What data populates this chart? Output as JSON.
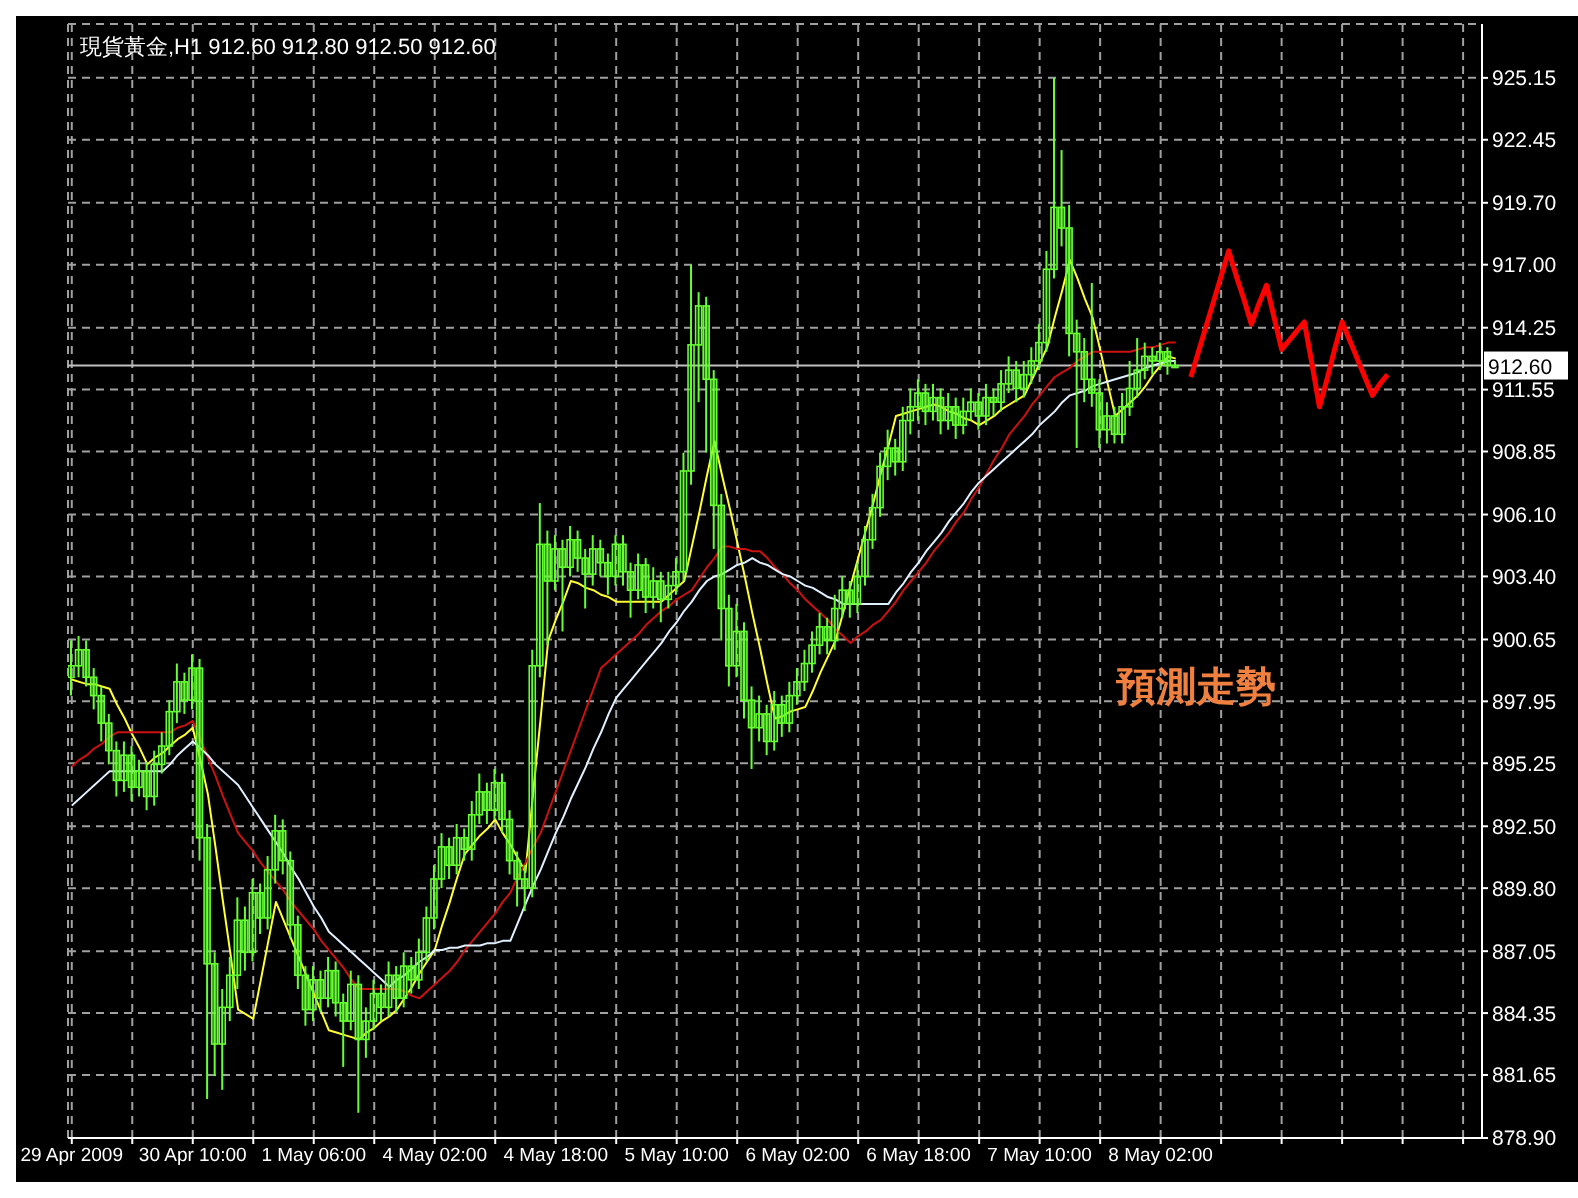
{
  "chart_data": {
    "type": "candlestick",
    "title": "現貨黃金,H1 912.60 912.80 912.50 912.60",
    "color": "#66ff33",
    "grid": true,
    "annotations": [
      "預測走勢"
    ],
    "ref_lines": [
      {
        "axis": "y",
        "value": 912.6,
        "label": "912.60",
        "color": "#c0c0c0"
      }
    ],
    "ylim": [
      878.9,
      927.5
    ],
    "yticks": [
      {
        "value": 878.9,
        "label": "878.90"
      },
      {
        "value": 881.65,
        "label": "881.65"
      },
      {
        "value": 884.35,
        "label": "884.35"
      },
      {
        "value": 887.05,
        "label": "887.05"
      },
      {
        "value": 889.8,
        "label": "889.80"
      },
      {
        "value": 892.5,
        "label": "892.50"
      },
      {
        "value": 895.25,
        "label": "895.25"
      },
      {
        "value": 897.95,
        "label": "897.95"
      },
      {
        "value": 900.65,
        "label": "900.65"
      },
      {
        "value": 903.4,
        "label": "903.40"
      },
      {
        "value": 906.1,
        "label": "906.10"
      },
      {
        "value": 908.85,
        "label": "908.85"
      },
      {
        "value": 911.55,
        "label": "911.55"
      },
      {
        "value": 914.25,
        "label": "914.25"
      },
      {
        "value": 917,
        "label": "917.00"
      },
      {
        "value": 919.7,
        "label": "919.70"
      },
      {
        "value": 922.45,
        "label": "922.45"
      },
      {
        "value": 925.15,
        "label": "925.15"
      }
    ],
    "categories": [
      "29 Apr 2009",
      null,
      null,
      null,
      null,
      null,
      null,
      null,
      null,
      null,
      null,
      null,
      null,
      null,
      null,
      null,
      "30 Apr 10:00",
      null,
      null,
      null,
      null,
      null,
      null,
      null,
      null,
      null,
      null,
      null,
      null,
      null,
      null,
      null,
      "1 May 06:00",
      null,
      null,
      null,
      null,
      null,
      null,
      null,
      null,
      null,
      null,
      null,
      null,
      null,
      null,
      null,
      "4 May 02:00",
      null,
      null,
      null,
      null,
      null,
      null,
      null,
      null,
      null,
      null,
      null,
      null,
      null,
      null,
      null,
      "4 May 18:00",
      null,
      null,
      null,
      null,
      null,
      null,
      null,
      null,
      null,
      null,
      null,
      null,
      null,
      null,
      null,
      "5 May 10:00",
      null,
      null,
      null,
      null,
      null,
      null,
      null,
      null,
      null,
      null,
      null,
      null,
      null,
      null,
      null,
      "6 May 02:00",
      null,
      null,
      null,
      null,
      null,
      null,
      null,
      null,
      null,
      null,
      null,
      null,
      null,
      null,
      null,
      "6 May 18:00",
      null,
      null,
      null,
      null,
      null,
      null,
      null,
      null,
      null,
      null,
      null,
      null,
      null,
      null,
      null,
      "7 May 10:00",
      null,
      null,
      null,
      null,
      null,
      null,
      null,
      null,
      null,
      null,
      null,
      null,
      null,
      null,
      null,
      "8 May 02:00",
      null,
      null,
      null,
      null,
      null,
      null,
      null,
      null,
      null,
      null,
      null,
      null,
      null,
      null,
      null,
      null,
      null,
      null,
      null,
      null,
      null,
      null,
      null,
      null,
      null,
      null,
      null,
      null,
      null,
      null,
      null,
      null,
      null,
      null,
      null,
      null,
      null,
      null,
      null,
      null,
      null,
      null
    ],
    "ohlc": [
      [
        899.0,
        900.6,
        898.2,
        899.5
      ],
      [
        899.5,
        900.8,
        899.0,
        900.2
      ],
      [
        900.2,
        900.6,
        898.6,
        899.0
      ],
      [
        899.0,
        899.4,
        897.6,
        898.2
      ],
      [
        898.2,
        898.6,
        896.2,
        897.0
      ],
      [
        897.0,
        897.4,
        895.2,
        895.8
      ],
      [
        895.8,
        896.2,
        893.8,
        894.5
      ],
      [
        894.5,
        896.2,
        894.0,
        895.6
      ],
      [
        895.6,
        896.0,
        893.6,
        894.2
      ],
      [
        894.2,
        895.4,
        893.8,
        894.9
      ],
      [
        894.9,
        895.3,
        893.2,
        893.8
      ],
      [
        893.8,
        895.8,
        893.4,
        895.2
      ],
      [
        895.2,
        896.6,
        894.8,
        896.0
      ],
      [
        896.0,
        898.0,
        895.6,
        897.5
      ],
      [
        897.5,
        899.6,
        897.0,
        898.8
      ],
      [
        898.8,
        899.2,
        897.4,
        898.0
      ],
      [
        898.0,
        900.0,
        897.6,
        899.4
      ],
      [
        899.4,
        899.8,
        891.0,
        892.0
      ],
      [
        892.0,
        892.6,
        880.6,
        886.5
      ],
      [
        886.5,
        887.0,
        881.6,
        883.0
      ],
      [
        883.0,
        885.4,
        881.0,
        884.6
      ],
      [
        884.6,
        886.8,
        884.0,
        886.0
      ],
      [
        886.0,
        889.4,
        885.4,
        888.4
      ],
      [
        888.4,
        889.0,
        886.2,
        887.0
      ],
      [
        887.0,
        890.2,
        886.6,
        889.6
      ],
      [
        889.6,
        890.0,
        887.8,
        888.5
      ],
      [
        888.5,
        891.2,
        888.0,
        890.6
      ],
      [
        890.6,
        893.0,
        890.0,
        892.3
      ],
      [
        892.3,
        892.8,
        890.4,
        891.0
      ],
      [
        891.0,
        891.4,
        887.6,
        888.2
      ],
      [
        888.2,
        888.6,
        885.4,
        886.0
      ],
      [
        886.0,
        886.4,
        883.8,
        884.5
      ],
      [
        884.5,
        886.4,
        884.0,
        885.8
      ],
      [
        885.8,
        886.2,
        884.4,
        885.0
      ],
      [
        885.0,
        886.8,
        884.6,
        886.2
      ],
      [
        886.2,
        886.6,
        884.2,
        884.8
      ],
      [
        884.8,
        885.2,
        882.0,
        884.0
      ],
      [
        884.0,
        886.2,
        883.6,
        885.6
      ],
      [
        885.6,
        886.0,
        880.0,
        883.2
      ],
      [
        883.2,
        884.6,
        882.4,
        884.0
      ],
      [
        884.0,
        885.8,
        883.6,
        885.2
      ],
      [
        885.2,
        885.6,
        884.0,
        884.6
      ],
      [
        884.6,
        886.6,
        884.2,
        886.0
      ],
      [
        886.0,
        886.4,
        884.4,
        885.0
      ],
      [
        885.0,
        887.0,
        884.6,
        886.4
      ],
      [
        886.4,
        886.8,
        885.2,
        885.8
      ],
      [
        885.8,
        887.6,
        885.4,
        887.0
      ],
      [
        887.0,
        889.0,
        886.6,
        888.5
      ],
      [
        888.5,
        890.8,
        888.0,
        890.2
      ],
      [
        890.2,
        892.2,
        889.8,
        891.6
      ],
      [
        891.6,
        892.0,
        890.2,
        890.8
      ],
      [
        890.8,
        892.6,
        890.4,
        892.0
      ],
      [
        892.0,
        892.4,
        891.0,
        891.5
      ],
      [
        891.5,
        893.6,
        891.0,
        893.0
      ],
      [
        893.0,
        894.8,
        892.6,
        894.0
      ],
      [
        894.0,
        894.4,
        892.6,
        893.2
      ],
      [
        893.2,
        895.0,
        892.8,
        894.4
      ],
      [
        894.4,
        894.8,
        892.2,
        892.8
      ],
      [
        892.8,
        893.2,
        890.4,
        891.0
      ],
      [
        891.0,
        891.4,
        889.0,
        890.2
      ],
      [
        890.2,
        890.8,
        888.8,
        889.8
      ],
      [
        889.8,
        900.2,
        889.4,
        899.5
      ],
      [
        899.5,
        906.6,
        899.0,
        904.8
      ],
      [
        904.8,
        905.4,
        900.4,
        903.2
      ],
      [
        903.2,
        905.2,
        902.8,
        904.6
      ],
      [
        904.6,
        905.0,
        901.0,
        903.8
      ],
      [
        903.8,
        905.6,
        903.4,
        905.0
      ],
      [
        905.0,
        905.4,
        903.6,
        904.2
      ],
      [
        904.2,
        904.6,
        902.0,
        903.5
      ],
      [
        903.5,
        905.2,
        903.0,
        904.6
      ],
      [
        904.6,
        905.0,
        903.4,
        904.0
      ],
      [
        904.0,
        904.4,
        902.6,
        903.4
      ],
      [
        903.4,
        905.2,
        903.0,
        904.8
      ],
      [
        904.8,
        905.2,
        903.0,
        903.6
      ],
      [
        903.6,
        904.0,
        901.6,
        902.8
      ],
      [
        902.8,
        904.4,
        902.4,
        903.9
      ],
      [
        903.9,
        904.2,
        901.8,
        902.5
      ],
      [
        902.5,
        903.8,
        902.0,
        903.2
      ],
      [
        903.2,
        903.6,
        901.4,
        902.4
      ],
      [
        902.4,
        903.6,
        902.0,
        903.0
      ],
      [
        903.0,
        904.2,
        902.6,
        903.6
      ],
      [
        903.6,
        908.8,
        903.2,
        908.0
      ],
      [
        908.0,
        917.0,
        907.4,
        913.5
      ],
      [
        913.5,
        915.8,
        911.0,
        915.2
      ],
      [
        915.2,
        915.6,
        908.8,
        912.0
      ],
      [
        912.0,
        912.4,
        904.6,
        906.5
      ],
      [
        906.5,
        907.0,
        900.6,
        902.0
      ],
      [
        902.0,
        902.6,
        898.6,
        899.5
      ],
      [
        899.5,
        902.2,
        899.0,
        901.0
      ],
      [
        901.0,
        901.4,
        897.2,
        898.0
      ],
      [
        898.0,
        898.6,
        895.0,
        896.8
      ],
      [
        896.8,
        898.2,
        896.2,
        897.4
      ],
      [
        897.4,
        897.8,
        895.6,
        896.2
      ],
      [
        896.2,
        898.4,
        895.8,
        897.8
      ],
      [
        897.8,
        898.2,
        896.4,
        897.0
      ],
      [
        897.0,
        898.8,
        896.6,
        898.2
      ],
      [
        898.2,
        899.4,
        897.8,
        898.8
      ],
      [
        898.8,
        900.2,
        898.4,
        899.6
      ],
      [
        899.6,
        901.0,
        899.2,
        900.4
      ],
      [
        900.4,
        901.8,
        900.0,
        901.2
      ],
      [
        901.2,
        901.6,
        900.0,
        900.6
      ],
      [
        900.6,
        902.6,
        900.2,
        902.0
      ],
      [
        902.0,
        903.4,
        901.6,
        902.8
      ],
      [
        902.8,
        903.2,
        901.6,
        902.2
      ],
      [
        902.2,
        904.0,
        901.8,
        903.4
      ],
      [
        903.4,
        905.6,
        903.0,
        905.0
      ],
      [
        905.0,
        907.0,
        904.6,
        906.4
      ],
      [
        906.4,
        908.8,
        906.0,
        908.2
      ],
      [
        908.2,
        909.8,
        907.6,
        909.0
      ],
      [
        909.0,
        909.4,
        907.8,
        908.4
      ],
      [
        908.4,
        910.8,
        908.0,
        910.2
      ],
      [
        910.2,
        911.6,
        909.6,
        910.8
      ],
      [
        910.8,
        912.0,
        910.2,
        911.4
      ],
      [
        911.4,
        911.8,
        910.0,
        910.6
      ],
      [
        910.6,
        911.8,
        910.2,
        911.2
      ],
      [
        911.2,
        911.6,
        909.6,
        910.2
      ],
      [
        910.2,
        911.4,
        909.8,
        910.8
      ],
      [
        910.8,
        911.2,
        909.4,
        910.0
      ],
      [
        910.0,
        911.2,
        909.6,
        910.6
      ],
      [
        910.6,
        911.6,
        910.2,
        911.0
      ],
      [
        911.0,
        911.4,
        909.8,
        910.4
      ],
      [
        910.4,
        911.8,
        910.0,
        911.2
      ],
      [
        911.2,
        911.6,
        910.4,
        911.0
      ],
      [
        911.0,
        912.4,
        910.6,
        911.8
      ],
      [
        911.8,
        913.0,
        911.4,
        912.4
      ],
      [
        912.4,
        912.8,
        911.0,
        911.6
      ],
      [
        911.6,
        912.8,
        911.2,
        912.2
      ],
      [
        912.2,
        913.4,
        911.8,
        912.8
      ],
      [
        912.8,
        914.4,
        912.4,
        913.6
      ],
      [
        913.6,
        917.6,
        913.2,
        916.8
      ],
      [
        916.8,
        925.15,
        916.4,
        919.5
      ],
      [
        919.5,
        922.0,
        917.8,
        918.6
      ],
      [
        918.6,
        919.6,
        913.0,
        914.0
      ],
      [
        914.0,
        914.6,
        909.0,
        913.2
      ],
      [
        913.2,
        913.8,
        911.0,
        912.0
      ],
      [
        912.0,
        916.2,
        910.8,
        911.4
      ],
      [
        911.4,
        912.0,
        909.0,
        909.8
      ],
      [
        909.8,
        911.0,
        909.2,
        910.4
      ],
      [
        910.4,
        910.8,
        909.2,
        909.6
      ],
      [
        909.6,
        911.4,
        909.2,
        910.8
      ],
      [
        910.8,
        912.8,
        910.4,
        911.6
      ],
      [
        911.6,
        913.8,
        911.2,
        912.4
      ],
      [
        912.4,
        913.6,
        912.0,
        913.0
      ],
      [
        913.0,
        913.4,
        912.2,
        912.8
      ],
      [
        912.8,
        913.6,
        912.4,
        913.2
      ],
      [
        913.2,
        913.4,
        912.2,
        912.6
      ],
      [
        912.6,
        912.8,
        912.5,
        912.6
      ],
      null,
      null,
      null,
      null,
      null,
      null,
      null,
      null,
      null,
      null,
      null,
      null,
      null,
      null,
      null,
      null,
      null,
      null,
      null,
      null,
      null,
      null,
      null,
      null,
      null,
      null,
      null,
      null,
      null,
      null,
      null,
      null,
      null,
      null,
      null,
      null,
      null,
      null,
      null,
      null
    ],
    "series": [
      {
        "type": "line",
        "color": "#ffff33",
        "values": [
          898.9,
          898.8,
          898.7,
          898.7,
          898.6,
          898.5,
          897.8,
          897.2,
          896.5,
          895.9,
          895.2,
          895.5,
          895.7,
          896.0,
          896.3,
          896.5,
          896.8,
          895.4,
          893.9,
          891.6,
          889.2,
          886.9,
          884.5,
          884.3,
          884.1,
          885.8,
          887.5,
          889.2,
          888.4,
          887.6,
          886.8,
          886.0,
          885.2,
          884.4,
          883.6,
          883.5,
          883.4,
          883.3,
          883.2,
          883.5,
          883.7,
          884.0,
          884.2,
          884.5,
          885.0,
          885.5,
          886.1,
          886.6,
          887.1,
          888.2,
          889.2,
          890.3,
          891.3,
          891.7,
          892.1,
          892.4,
          892.8,
          892.2,
          891.7,
          891.1,
          890.5,
          893.9,
          897.2,
          900.6,
          901.5,
          902.3,
          903.2,
          903.1,
          902.9,
          902.8,
          902.6,
          902.5,
          902.3,
          902.3,
          902.3,
          902.3,
          902.3,
          902.3,
          902.3,
          902.6,
          902.9,
          903.2,
          904.7,
          906.2,
          907.8,
          909.3,
          907.8,
          906.4,
          904.9,
          903.4,
          901.8,
          900.3,
          898.7,
          897.2,
          897.3,
          897.5,
          897.6,
          897.7,
          898.4,
          899.2,
          899.9,
          900.6,
          901.8,
          903.0,
          904.2,
          905.4,
          906.6,
          907.9,
          909.1,
          910.4,
          910.5,
          910.6,
          910.7,
          910.8,
          910.9,
          910.8,
          910.6,
          910.5,
          910.3,
          910.2,
          910.0,
          910.2,
          910.4,
          910.7,
          910.9,
          911.1,
          911.3,
          912.0,
          912.7,
          913.4,
          914.7,
          915.9,
          917.2,
          916.4,
          915.5,
          914.7,
          913.3,
          911.8,
          910.4,
          910.7,
          911.0,
          911.3,
          911.7,
          912.2,
          912.6,
          913.0,
          912.9,
          null,
          null,
          null,
          null,
          null,
          null,
          null,
          null,
          null,
          null,
          null,
          null,
          null,
          null,
          null,
          null,
          null,
          null,
          null,
          null,
          null,
          null,
          null,
          null,
          null,
          null,
          null,
          null,
          null,
          null,
          null,
          null,
          null,
          null,
          null,
          null,
          null,
          null,
          null,
          null
        ]
      },
      {
        "type": "line",
        "color": "#cc1111",
        "values": [
          895.1,
          895.4,
          895.6,
          895.9,
          896.1,
          896.4,
          896.6,
          896.6,
          896.6,
          896.6,
          896.6,
          896.6,
          896.6,
          896.6,
          896.8,
          896.9,
          897.1,
          896.3,
          895.5,
          894.7,
          893.8,
          893.0,
          892.2,
          891.8,
          891.4,
          890.9,
          890.5,
          890.1,
          889.7,
          889.2,
          888.8,
          888.4,
          888.0,
          887.5,
          887.1,
          886.7,
          886.3,
          885.8,
          885.4,
          885.4,
          885.4,
          885.4,
          885.4,
          885.4,
          885.3,
          885.1,
          885.0,
          885.3,
          885.6,
          885.9,
          886.2,
          886.6,
          887.1,
          887.5,
          887.9,
          888.3,
          888.7,
          889.2,
          889.6,
          890.3,
          890.9,
          891.6,
          892.2,
          893.1,
          894.0,
          894.9,
          895.8,
          896.7,
          897.6,
          898.5,
          899.4,
          899.7,
          900.0,
          900.3,
          900.6,
          900.9,
          901.3,
          901.6,
          901.9,
          902.1,
          902.4,
          902.6,
          902.8,
          903.3,
          903.8,
          904.2,
          904.7,
          904.7,
          904.6,
          904.6,
          904.5,
          904.5,
          904.2,
          903.8,
          903.5,
          903.1,
          902.8,
          902.4,
          902.1,
          901.8,
          901.5,
          901.1,
          900.8,
          900.5,
          900.8,
          901.0,
          901.3,
          901.5,
          901.9,
          902.3,
          902.8,
          903.2,
          903.6,
          904.0,
          904.5,
          904.9,
          905.3,
          905.8,
          906.2,
          906.8,
          907.3,
          907.9,
          908.5,
          909.0,
          909.6,
          910.0,
          910.4,
          910.9,
          911.3,
          911.7,
          912.1,
          912.3,
          912.5,
          912.8,
          913.0,
          913.2,
          913.2,
          913.2,
          913.2,
          913.2,
          913.2,
          913.3,
          913.4,
          913.4,
          913.5,
          913.6,
          913.6,
          null,
          null,
          null,
          null,
          null,
          null,
          null,
          null,
          null,
          null,
          null,
          null,
          null,
          null,
          null,
          null,
          null,
          null,
          null,
          null,
          null,
          null,
          null,
          null,
          null,
          null,
          null,
          null,
          null,
          null,
          null,
          null,
          null,
          null,
          null,
          null,
          null,
          null,
          null,
          null
        ]
      },
      {
        "type": "line",
        "color": "#e0f0ff",
        "values": [
          893.4,
          893.7,
          894.0,
          894.3,
          894.6,
          894.9,
          894.9,
          894.9,
          894.9,
          894.9,
          894.9,
          894.9,
          894.9,
          895.2,
          895.6,
          895.9,
          896.2,
          895.9,
          895.6,
          895.2,
          894.9,
          894.6,
          894.3,
          893.8,
          893.3,
          892.8,
          892.3,
          891.8,
          891.3,
          890.7,
          890.2,
          889.6,
          889.0,
          888.5,
          887.9,
          887.6,
          887.3,
          887.0,
          886.7,
          886.4,
          886.1,
          885.8,
          885.5,
          885.8,
          886.0,
          886.3,
          886.6,
          886.8,
          887.1,
          887.1,
          887.2,
          887.2,
          887.3,
          887.3,
          887.3,
          887.4,
          887.4,
          887.5,
          887.5,
          888.3,
          889.1,
          889.9,
          890.6,
          891.4,
          892.2,
          892.9,
          893.7,
          894.4,
          895.1,
          895.9,
          896.6,
          897.4,
          898.1,
          898.5,
          898.9,
          899.3,
          899.7,
          900.1,
          900.5,
          901.0,
          901.4,
          901.9,
          902.3,
          902.8,
          903.2,
          903.4,
          903.5,
          903.7,
          903.9,
          904.0,
          904.2,
          904.0,
          903.9,
          903.7,
          903.5,
          903.4,
          903.2,
          903.0,
          902.9,
          902.7,
          902.5,
          902.4,
          902.2,
          902.2,
          902.2,
          902.2,
          902.2,
          902.2,
          902.2,
          902.7,
          903.1,
          903.6,
          904.0,
          904.5,
          904.9,
          905.3,
          905.8,
          906.2,
          906.6,
          907.1,
          907.5,
          907.8,
          908.1,
          908.4,
          908.7,
          909.0,
          909.3,
          909.6,
          910.0,
          910.3,
          910.6,
          911.0,
          911.3,
          911.4,
          911.5,
          911.7,
          911.8,
          911.9,
          912.0,
          912.1,
          912.2,
          912.3,
          912.5,
          912.6,
          912.7,
          912.8,
          912.8,
          null,
          null,
          null,
          null,
          null,
          null,
          null,
          null,
          null,
          null,
          null,
          null,
          null,
          null,
          null,
          null,
          null,
          null,
          null,
          null,
          null,
          null,
          null,
          null,
          null,
          null,
          null,
          null,
          null,
          null,
          null,
          null,
          null,
          null,
          null,
          null,
          null,
          null,
          null,
          null
        ]
      },
      {
        "type": "line",
        "color": "#ff0000",
        "values": [
          null,
          null,
          null,
          null,
          null,
          null,
          null,
          null,
          null,
          null,
          null,
          null,
          null,
          null,
          null,
          null,
          null,
          null,
          null,
          null,
          null,
          null,
          null,
          null,
          null,
          null,
          null,
          null,
          null,
          null,
          null,
          null,
          null,
          null,
          null,
          null,
          null,
          null,
          null,
          null,
          null,
          null,
          null,
          null,
          null,
          null,
          null,
          null,
          null,
          null,
          null,
          null,
          null,
          null,
          null,
          null,
          null,
          null,
          null,
          null,
          null,
          null,
          null,
          null,
          null,
          null,
          null,
          null,
          null,
          null,
          null,
          null,
          null,
          null,
          null,
          null,
          null,
          null,
          null,
          null,
          null,
          null,
          null,
          null,
          null,
          null,
          null,
          null,
          null,
          null,
          null,
          null,
          null,
          null,
          null,
          null,
          null,
          null,
          null,
          null,
          null,
          null,
          null,
          null,
          null,
          null,
          null,
          null,
          null,
          null,
          null,
          null,
          null,
          null,
          null,
          null,
          null,
          null,
          null,
          null,
          null,
          null,
          null,
          null,
          null,
          null,
          null,
          null,
          null,
          null,
          null,
          null,
          null,
          null,
          null,
          null,
          null,
          null,
          null,
          null,
          null,
          null,
          null,
          null,
          null,
          null,
          null,
          null,
          912.1,
          913.2,
          914.3,
          915.4,
          916.5,
          917.6,
          916.5,
          915.5,
          914.4,
          915.3,
          916.1,
          914.7,
          913.3,
          913.7,
          914.1,
          914.5,
          912.7,
          910.8,
          912.0,
          913.3,
          914.5,
          913.7,
          912.9,
          912.1,
          911.3,
          911.8,
          912.2,
          null,
          null,
          null,
          null,
          null,
          null,
          null,
          null,
          null,
          null,
          null,
          null
        ]
      }
    ]
  }
}
